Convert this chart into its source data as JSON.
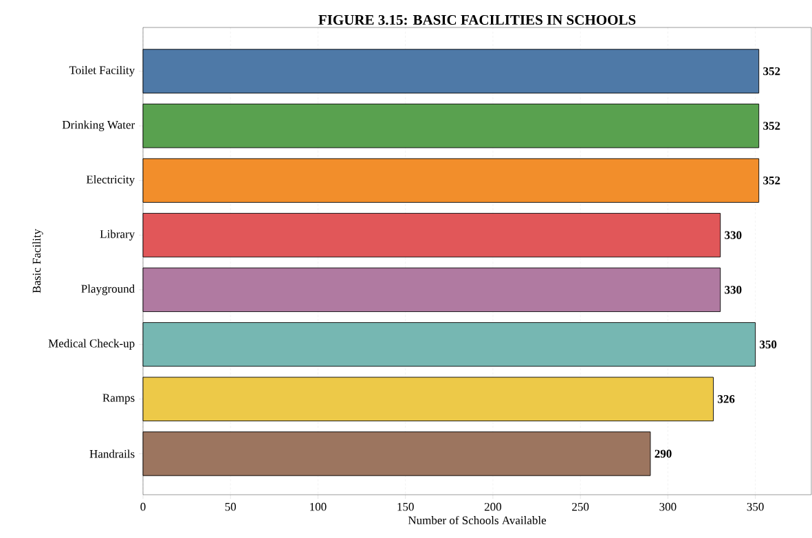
{
  "chart_data": {
    "type": "bar",
    "orientation": "horizontal",
    "title": "FIGURE 3.15: BASIC FACILITIES IN SCHOOLS",
    "xlabel": "Number of Schools Available",
    "ylabel": "Basic Facility",
    "categories": [
      "Toilet Facility",
      "Drinking Water",
      "Electricity",
      "Library",
      "Playground",
      "Medical Check-up",
      "Ramps",
      "Handrails"
    ],
    "values": [
      352,
      352,
      352,
      330,
      330,
      350,
      326,
      290
    ],
    "colors": [
      "#4e79a7",
      "#59a14f",
      "#f28e2b",
      "#e15759",
      "#b07aa1",
      "#76b7b2",
      "#edc948",
      "#9c755f"
    ],
    "xlim": [
      0,
      382
    ],
    "xticks": [
      0,
      50,
      100,
      150,
      200,
      250,
      300,
      350
    ],
    "grid": "x",
    "data_labels": true
  }
}
